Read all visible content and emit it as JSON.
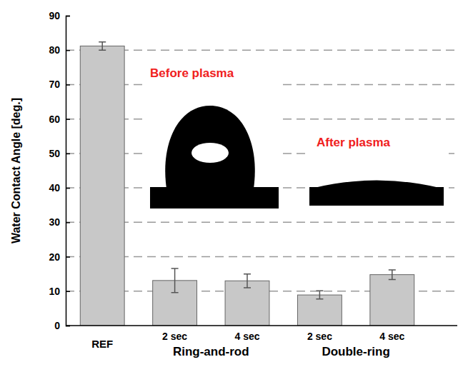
{
  "chart_data": {
    "type": "bar",
    "y_label": "Water Contact Angle [deg.]",
    "categories": [
      "REF",
      "2 sec",
      "4 sec",
      "2 sec",
      "4 sec"
    ],
    "values": [
      81.2,
      13.1,
      13.0,
      8.9,
      14.8
    ],
    "errors": [
      1.2,
      3.5,
      2.0,
      1.2,
      1.4
    ],
    "groups": [
      {
        "name": "Ring-and-rod",
        "members": [
          1,
          2
        ]
      },
      {
        "name": "Double-ring",
        "members": [
          3,
          4
        ]
      }
    ],
    "color": "#c8c8c8",
    "ylim": [
      0,
      90
    ],
    "yticks": [
      0,
      10,
      20,
      30,
      40,
      50,
      60,
      70,
      80,
      90
    ],
    "grid": true,
    "annotations": [
      {
        "text": "Before plasma",
        "color": "#f02020"
      },
      {
        "text": "After plasma",
        "color": "#f02020"
      }
    ]
  }
}
